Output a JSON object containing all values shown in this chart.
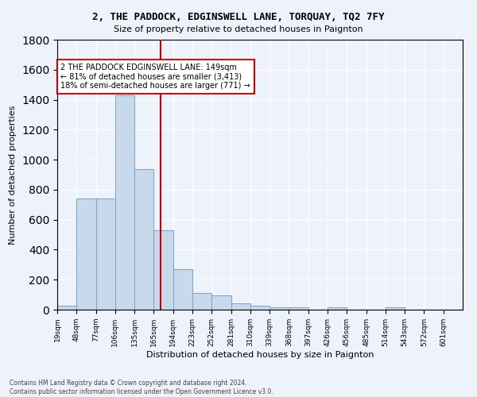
{
  "title1": "2, THE PADDOCK, EDGINSWELL LANE, TORQUAY, TQ2 7FY",
  "title2": "Size of property relative to detached houses in Paignton",
  "xlabel": "Distribution of detached houses by size in Paignton",
  "ylabel": "Number of detached properties",
  "bin_labels": [
    "19sqm",
    "48sqm",
    "77sqm",
    "106sqm",
    "135sqm",
    "165sqm",
    "194sqm",
    "223sqm",
    "252sqm",
    "281sqm",
    "310sqm",
    "339sqm",
    "368sqm",
    "397sqm",
    "426sqm",
    "456sqm",
    "485sqm",
    "514sqm",
    "543sqm",
    "572sqm",
    "601sqm"
  ],
  "bar_values": [
    25,
    740,
    740,
    1430,
    935,
    530,
    270,
    110,
    95,
    45,
    25,
    15,
    15,
    0,
    15,
    0,
    0,
    15,
    0,
    0,
    0
  ],
  "bar_color": "#c9d9ec",
  "bar_edge_color": "#7faacc",
  "vline_x": 5.35,
  "vline_color": "#cc0000",
  "annotation_text": "2 THE PADDOCK EDGINSWELL LANE: 149sqm\n← 81% of detached houses are smaller (3,413)\n18% of semi-detached houses are larger (771) →",
  "annotation_box_color": "white",
  "annotation_box_edge": "#cc0000",
  "footnote": "Contains HM Land Registry data © Crown copyright and database right 2024.\nContains public sector information licensed under the Open Government Licence v3.0.",
  "ylim": [
    0,
    1800
  ],
  "yticks": [
    0,
    200,
    400,
    600,
    800,
    1000,
    1200,
    1400,
    1600,
    1800
  ],
  "background_color": "#eef2fb",
  "grid_color": "white"
}
